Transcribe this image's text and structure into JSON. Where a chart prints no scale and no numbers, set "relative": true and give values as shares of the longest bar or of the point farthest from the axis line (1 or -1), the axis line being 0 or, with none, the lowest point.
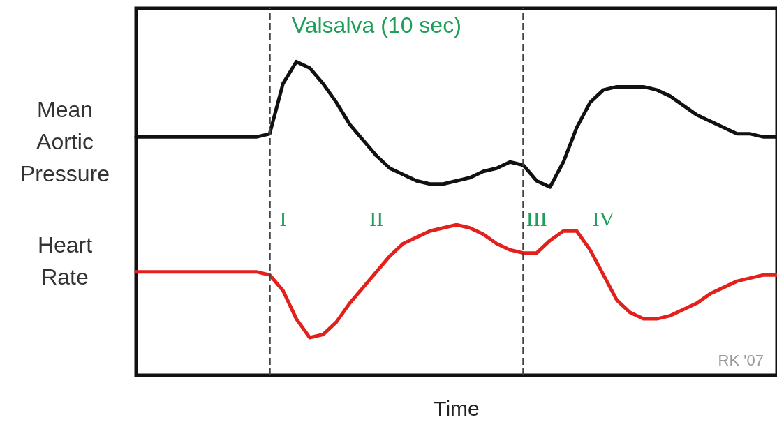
{
  "chart_data": {
    "type": "line",
    "relative": true,
    "xlabel": "Time",
    "tick_labels": false,
    "grid": false,
    "legend": false,
    "marker": "none",
    "line_style": "solid",
    "categories": [
      null,
      null,
      null,
      null,
      null,
      null,
      null,
      null,
      null,
      null,
      null,
      null,
      null,
      null,
      null,
      null,
      null,
      null,
      null,
      null,
      null,
      null,
      null,
      null,
      null,
      null,
      null,
      null,
      null,
      null,
      null,
      null,
      null,
      null,
      null,
      null,
      null,
      null,
      null,
      null,
      null,
      null,
      null,
      null,
      null,
      null,
      null,
      null,
      null
    ],
    "series": [
      {
        "name": "Mean Aortic Pressure",
        "color": "#111111",
        "values": [
          0.76,
          0.76,
          0.76,
          0.76,
          0.76,
          0.76,
          0.76,
          0.76,
          0.76,
          0.76,
          0.77,
          0.93,
          1,
          0.98,
          0.93,
          0.87,
          0.8,
          0.75,
          0.7,
          0.66,
          0.64,
          0.62,
          0.61,
          0.61,
          0.62,
          0.63,
          0.65,
          0.66,
          0.68,
          0.67,
          0.62,
          0.6,
          0.68,
          0.79,
          0.87,
          0.91,
          0.92,
          0.92,
          0.92,
          0.91,
          0.89,
          0.86,
          0.83,
          0.81,
          0.79,
          0.77,
          0.77,
          0.76,
          0.76
        ]
      },
      {
        "name": "Heart Rate",
        "color": "#e3211c",
        "values": [
          0.33,
          0.33,
          0.33,
          0.33,
          0.33,
          0.33,
          0.33,
          0.33,
          0.33,
          0.33,
          0.32,
          0.27,
          0.18,
          0.12,
          0.13,
          0.17,
          0.23,
          0.28,
          0.33,
          0.38,
          0.42,
          0.44,
          0.46,
          0.47,
          0.48,
          0.47,
          0.45,
          0.42,
          0.4,
          0.39,
          0.39,
          0.43,
          0.46,
          0.46,
          0.4,
          0.32,
          0.24,
          0.2,
          0.18,
          0.18,
          0.19,
          0.21,
          0.23,
          0.26,
          0.28,
          0.3,
          0.31,
          0.32,
          0.32
        ]
      }
    ],
    "annotations": [
      "Valsalva (10 sec)",
      "I",
      "II",
      "III",
      "IV",
      "RK '07"
    ]
  }
}
